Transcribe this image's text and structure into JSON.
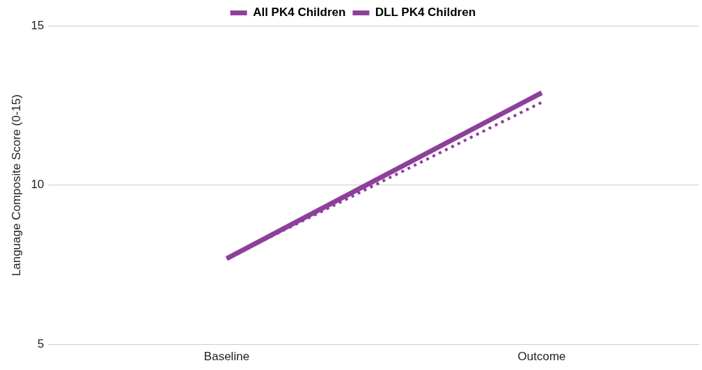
{
  "chart_data": {
    "type": "line",
    "ylabel": "Language Composite Score (0-15)",
    "categories": [
      "Baseline",
      "Outcome"
    ],
    "series": [
      {
        "name": "All PK4 Children",
        "color": "#8e3f9b",
        "values": [
          7.7,
          12.9
        ],
        "line_style": "solid"
      },
      {
        "name": "DLL PK4 Children",
        "color": "#8e3f9b",
        "values": [
          7.7,
          12.6
        ],
        "line_style": "dotted"
      }
    ],
    "ylim": [
      5,
      15
    ],
    "yticks": [
      5,
      10,
      15
    ],
    "grid": "y",
    "legend": "top",
    "marker": "none"
  }
}
